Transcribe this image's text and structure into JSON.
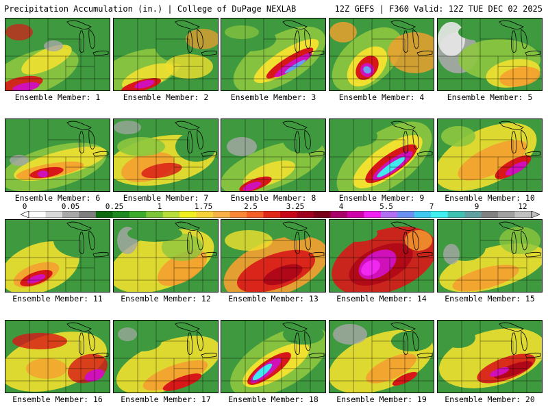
{
  "header": {
    "title": "Precipitation Accumulation (in.) | College of DuPage NEXLAB",
    "run_info": "12Z GEFS | F360 Valid: 12Z TUE DEC 02 2025"
  },
  "colorbar": {
    "labels": [
      "0",
      "0.05",
      "0.25",
      "1",
      "1.75",
      "2.5",
      "3.25",
      "4",
      "5.5",
      "7",
      "9",
      "12"
    ],
    "colors": [
      "#ffffff",
      "#d9d9d9",
      "#a8a8a8",
      "#7e7e7e",
      "#0e6a0e",
      "#1f8a1f",
      "#3caa2c",
      "#7cc43a",
      "#b8dc3c",
      "#f0f020",
      "#f8d23a",
      "#f8b048",
      "#f88838",
      "#f06028",
      "#e02818",
      "#c80818",
      "#a00020",
      "#780018",
      "#a80068",
      "#d000a8",
      "#f020f0",
      "#b070f0",
      "#6a90f0",
      "#40c8f0",
      "#40f0f0",
      "#40c0b0",
      "#60a0a0",
      "#808080",
      "#a0a0a0",
      "#c0c0c0"
    ],
    "icon": "colorbar-arrow-icon"
  },
  "panels": [
    {
      "label": "Ensemble Member: 1"
    },
    {
      "label": "Ensemble Member: 2"
    },
    {
      "label": "Ensemble Member: 3"
    },
    {
      "label": "Ensemble Member: 4"
    },
    {
      "label": "Ensemble Member: 5"
    },
    {
      "label": "Ensemble Member: 6"
    },
    {
      "label": "Ensemble Member: 7"
    },
    {
      "label": "Ensemble Member: 8"
    },
    {
      "label": "Ensemble Member: 9"
    },
    {
      "label": "Ensemble Member: 10"
    },
    {
      "label": "Ensemble Member: 11"
    },
    {
      "label": "Ensemble Member: 12"
    },
    {
      "label": "Ensemble Member: 13"
    },
    {
      "label": "Ensemble Member: 14"
    },
    {
      "label": "Ensemble Member: 15"
    },
    {
      "label": "Ensemble Member: 16"
    },
    {
      "label": "Ensemble Member: 17"
    },
    {
      "label": "Ensemble Member: 18"
    },
    {
      "label": "Ensemble Member: 19"
    },
    {
      "label": "Ensemble Member: 20"
    }
  ],
  "colors": {
    "background": "#ffffff",
    "map_base": "#3f9a3f",
    "borders": "#000000",
    "light_green": "#8dc63f",
    "yellow": "#f0e030",
    "orange": "#f5a030",
    "red": "#d81818",
    "magenta": "#d010b8",
    "cyan": "#40e8f0",
    "gray": "#a0a0a0"
  }
}
